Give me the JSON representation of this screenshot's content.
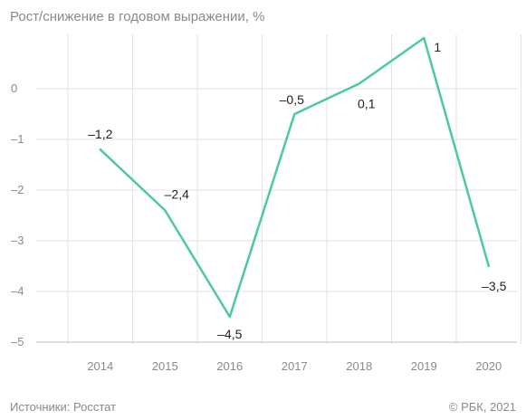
{
  "header": {
    "title": "Рост/снижение в годовом выражении, %"
  },
  "footer": {
    "source": "Источники: Росстат",
    "copyright": "© РБК, 2021"
  },
  "chart_data": {
    "type": "line",
    "title": "Рост/снижение в годовом выражении, %",
    "xlabel": "",
    "ylabel": "",
    "categories": [
      "2014",
      "2015",
      "2016",
      "2017",
      "2018",
      "2019",
      "2020"
    ],
    "series": [
      {
        "values": [
          -1.2,
          -2.4,
          -4.5,
          -0.5,
          0.1,
          1,
          -3.5
        ],
        "labels": [
          "–1,2",
          "–2,4",
          "–4,5",
          "–0,5",
          "0,1",
          "1",
          "–3,5"
        ]
      }
    ],
    "yticks": [
      0,
      -1,
      -2,
      -3,
      -4,
      -5
    ],
    "ytick_labels": [
      "0",
      "–1",
      "–2",
      "–3",
      "–4",
      "–5"
    ],
    "ylim": [
      -5,
      0.9
    ],
    "grid": true,
    "colors": {
      "line": "#4ccb9a",
      "grid": "#e3e3e3",
      "axis": "#bdbdbd"
    }
  }
}
